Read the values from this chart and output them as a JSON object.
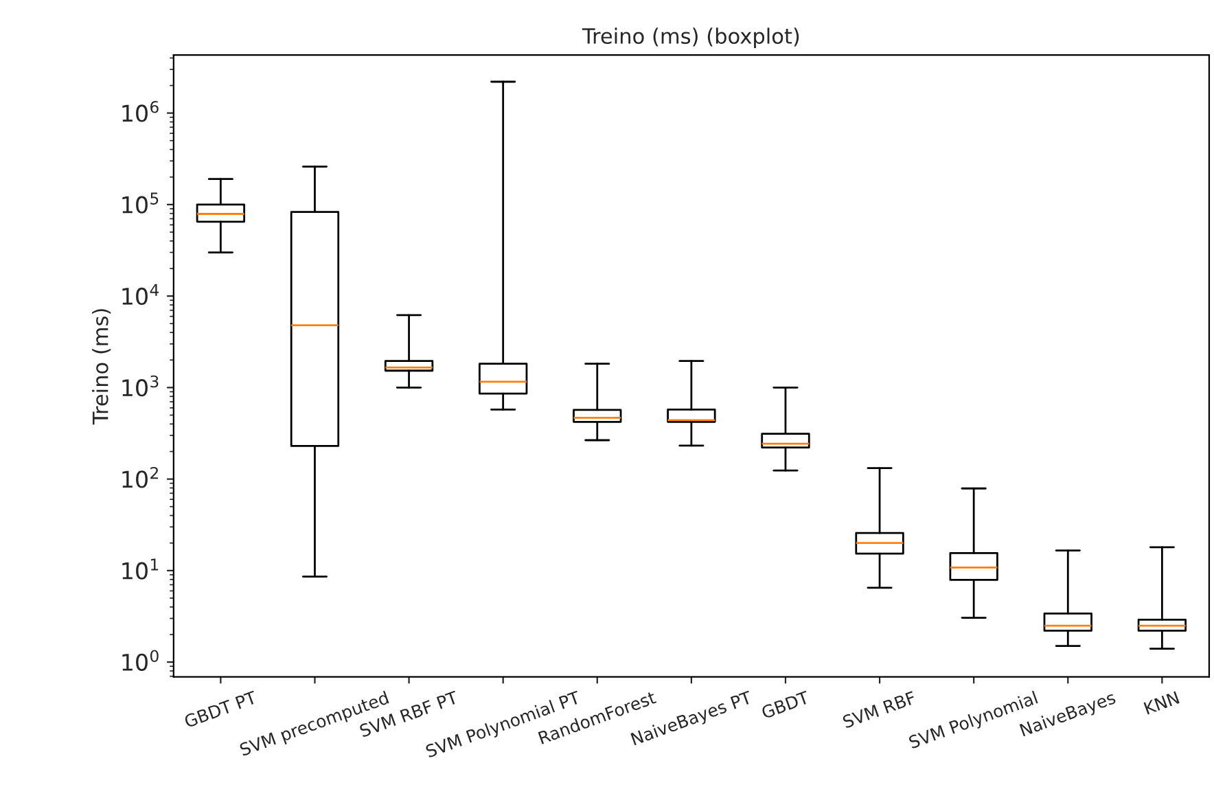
{
  "chart_data": {
    "type": "box",
    "title": "Treino (ms) (boxplot)",
    "ylabel": "Treino (ms)",
    "log": "y",
    "grid": false,
    "legend": false,
    "categories": [
      "GBDT PT",
      "SVM precomputed",
      "SVM RBF PT",
      "SVM Polynomial PT",
      "RandomForest",
      "NaiveBayes PT",
      "GBDT",
      "SVM RBF",
      "SVM Polynomial",
      "NaiveBayes",
      "KNN"
    ],
    "boxes": [
      {
        "low": 30000,
        "q1": 65000,
        "median": 79000,
        "q3": 100000,
        "high": 190000
      },
      {
        "low": 8.6,
        "q1": 230,
        "median": 4800,
        "q3": 83000,
        "high": 260000
      },
      {
        "low": 1000,
        "q1": 1530,
        "median": 1660,
        "q3": 1950,
        "high": 6200
      },
      {
        "low": 575,
        "q1": 860,
        "median": 1160,
        "q3": 1820,
        "high": 2200000
      },
      {
        "low": 266,
        "q1": 422,
        "median": 468,
        "q3": 570,
        "high": 1820
      },
      {
        "low": 232,
        "q1": 422,
        "median": 440,
        "q3": 575,
        "high": 1950
      },
      {
        "low": 124,
        "q1": 221,
        "median": 243,
        "q3": 313,
        "high": 1000
      },
      {
        "low": 6.5,
        "q1": 15.3,
        "median": 20,
        "q3": 25.7,
        "high": 132
      },
      {
        "low": 3.05,
        "q1": 7.9,
        "median": 10.8,
        "q3": 15.5,
        "high": 79
      },
      {
        "low": 1.5,
        "q1": 2.2,
        "median": 2.5,
        "q3": 3.4,
        "high": 16.6
      },
      {
        "low": 1.4,
        "q1": 2.2,
        "median": 2.5,
        "q3": 2.9,
        "high": 18
      }
    ],
    "color": "#000000",
    "ylim": [
      0.69,
      4300000
    ],
    "yticks": [
      {
        "value": 1,
        "label": "10$^{0}$"
      },
      {
        "value": 10,
        "label": "10$^{1}$"
      },
      {
        "value": 100,
        "label": "10$^{2}$"
      },
      {
        "value": 1000,
        "label": "10$^{3}$"
      },
      {
        "value": 10000,
        "label": "10$^{4}$"
      },
      {
        "value": 100000,
        "label": "10$^{5}$"
      },
      {
        "value": 1000000,
        "label": "10$^{6}$"
      }
    ]
  }
}
